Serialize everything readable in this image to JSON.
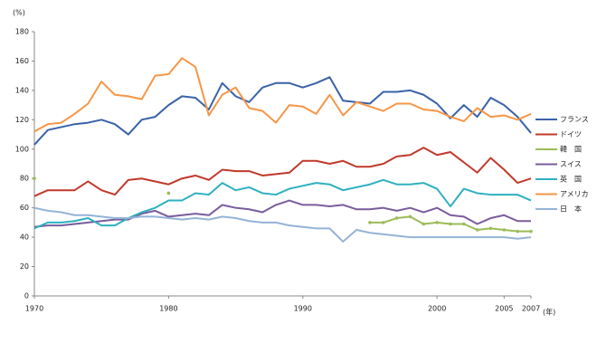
{
  "chart_data": {
    "type": "line",
    "y_label": "(%)",
    "x_label": "(年)",
    "x": [
      1970,
      1971,
      1972,
      1973,
      1974,
      1975,
      1976,
      1977,
      1978,
      1979,
      1980,
      1981,
      1982,
      1983,
      1984,
      1985,
      1986,
      1987,
      1988,
      1989,
      1990,
      1991,
      1992,
      1993,
      1994,
      1995,
      1996,
      1997,
      1998,
      1999,
      2000,
      2001,
      2002,
      2003,
      2004,
      2005,
      2006,
      2007
    ],
    "xlim": [
      1970,
      2007
    ],
    "xticks": [
      1970,
      1980,
      1990,
      2000,
      2005,
      2007
    ],
    "ylim": [
      0,
      180
    ],
    "yticks": [
      0,
      20,
      40,
      60,
      80,
      100,
      120,
      140,
      160,
      180
    ],
    "grid": false,
    "legend": "right",
    "series": [
      {
        "name": "フランス",
        "color": "#3a62a8",
        "values": [
          103,
          113,
          115,
          117,
          118,
          120,
          117,
          110,
          120,
          122,
          130,
          136,
          135,
          127,
          145,
          136,
          132,
          142,
          145,
          145,
          142,
          145,
          149,
          133,
          132,
          131,
          139,
          139,
          140,
          137,
          131,
          121,
          130,
          122,
          135,
          130,
          122,
          111
        ]
      },
      {
        "name": "ドイツ",
        "color": "#c0392b",
        "values": [
          68,
          72,
          72,
          72,
          78,
          72,
          69,
          79,
          80,
          78,
          76,
          80,
          82,
          79,
          86,
          85,
          85,
          82,
          83,
          84,
          92,
          92,
          90,
          92,
          88,
          88,
          90,
          95,
          96,
          101,
          96,
          98,
          91,
          84,
          94,
          86,
          77,
          80
        ]
      },
      {
        "name": "韓　国",
        "color": "#9bbb59",
        "values": [
          80,
          null,
          null,
          null,
          null,
          null,
          null,
          null,
          null,
          null,
          70,
          null,
          null,
          null,
          null,
          null,
          null,
          null,
          null,
          null,
          null,
          null,
          null,
          null,
          null,
          50,
          50,
          53,
          54,
          49,
          50,
          49,
          49,
          45,
          46,
          45,
          44,
          44
        ]
      },
      {
        "name": "スイス",
        "color": "#7a5c9c",
        "values": [
          47,
          48,
          48,
          49,
          50,
          51,
          52,
          52,
          56,
          58,
          54,
          55,
          56,
          55,
          62,
          60,
          59,
          57,
          62,
          65,
          62,
          62,
          61,
          62,
          59,
          59,
          60,
          58,
          60,
          57,
          60,
          55,
          54,
          49,
          53,
          55,
          51,
          51
        ]
      },
      {
        "name": "英　国",
        "color": "#2eb0c0",
        "values": [
          46,
          50,
          50,
          51,
          53,
          48,
          48,
          53,
          57,
          60,
          65,
          65,
          70,
          69,
          77,
          72,
          74,
          70,
          69,
          73,
          75,
          77,
          76,
          72,
          74,
          76,
          79,
          76,
          76,
          77,
          73,
          61,
          73,
          70,
          69,
          69,
          69,
          65
        ]
      },
      {
        "name": "アメリカ",
        "color": "#f79646",
        "values": [
          112,
          117,
          118,
          124,
          131,
          146,
          137,
          136,
          134,
          150,
          151,
          162,
          156,
          123,
          137,
          142,
          128,
          126,
          118,
          130,
          129,
          124,
          137,
          123,
          132,
          129,
          126,
          131,
          131,
          127,
          126,
          122,
          119,
          128,
          122,
          123,
          120,
          124
        ]
      },
      {
        "name": "日　本",
        "color": "#95b3d7",
        "values": [
          60,
          58,
          57,
          55,
          55,
          54,
          53,
          53,
          54,
          54,
          53,
          52,
          53,
          52,
          54,
          53,
          51,
          50,
          50,
          48,
          47,
          46,
          46,
          37,
          45,
          43,
          42,
          41,
          40,
          40,
          40,
          40,
          40,
          40,
          40,
          40,
          39,
          40
        ]
      }
    ]
  }
}
